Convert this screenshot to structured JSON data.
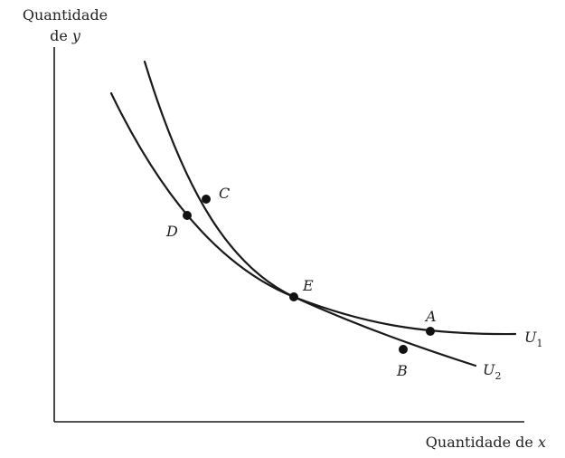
{
  "axes": {
    "y_label_line1": "Quantidade",
    "y_label_line2_prefix": "de ",
    "y_label_line2_var": "y",
    "x_label_prefix": "Quantidade de ",
    "x_label_var": "x"
  },
  "curves": [
    {
      "id": "U1",
      "letter": "U",
      "subscript": "1"
    },
    {
      "id": "U2",
      "letter": "U",
      "subscript": "2"
    }
  ],
  "points": [
    {
      "id": "A",
      "label": "A",
      "curve": "U1"
    },
    {
      "id": "B",
      "label": "B",
      "curve": "U2"
    },
    {
      "id": "C",
      "label": "C",
      "curve": "U1"
    },
    {
      "id": "D",
      "label": "D",
      "curve": "U2"
    },
    {
      "id": "E",
      "label": "E",
      "curve": "both"
    }
  ],
  "colors": {
    "ink": "#1a1a1a",
    "background": "#ffffff"
  }
}
